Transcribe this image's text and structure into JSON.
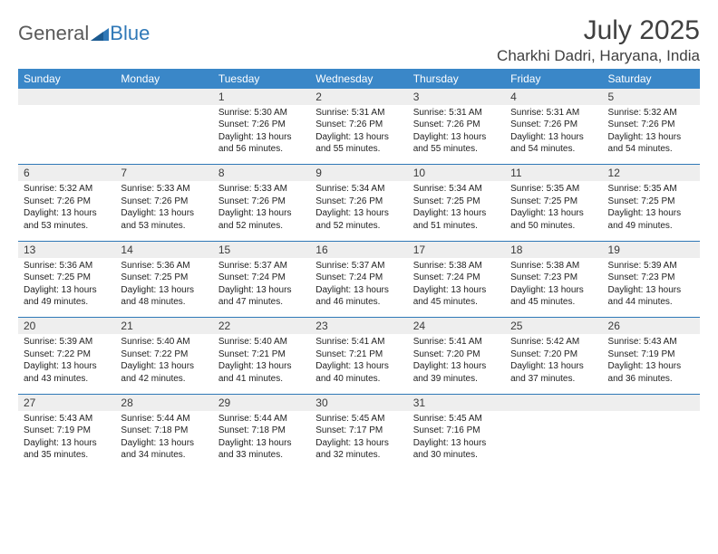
{
  "logo": {
    "part1": "General",
    "part2": "Blue"
  },
  "title": "July 2025",
  "location": "Charkhi Dadri, Haryana, India",
  "colors": {
    "header_bg": "#3a87c8",
    "daynum_bg": "#eeeeee",
    "rule": "#2f78b7",
    "text": "#222222",
    "title_text": "#404040"
  },
  "day_headers": [
    "Sunday",
    "Monday",
    "Tuesday",
    "Wednesday",
    "Thursday",
    "Friday",
    "Saturday"
  ],
  "weeks": [
    [
      null,
      null,
      {
        "n": "1",
        "sr": "5:30 AM",
        "ss": "7:26 PM",
        "dl": "13 hours and 56 minutes."
      },
      {
        "n": "2",
        "sr": "5:31 AM",
        "ss": "7:26 PM",
        "dl": "13 hours and 55 minutes."
      },
      {
        "n": "3",
        "sr": "5:31 AM",
        "ss": "7:26 PM",
        "dl": "13 hours and 55 minutes."
      },
      {
        "n": "4",
        "sr": "5:31 AM",
        "ss": "7:26 PM",
        "dl": "13 hours and 54 minutes."
      },
      {
        "n": "5",
        "sr": "5:32 AM",
        "ss": "7:26 PM",
        "dl": "13 hours and 54 minutes."
      }
    ],
    [
      {
        "n": "6",
        "sr": "5:32 AM",
        "ss": "7:26 PM",
        "dl": "13 hours and 53 minutes."
      },
      {
        "n": "7",
        "sr": "5:33 AM",
        "ss": "7:26 PM",
        "dl": "13 hours and 53 minutes."
      },
      {
        "n": "8",
        "sr": "5:33 AM",
        "ss": "7:26 PM",
        "dl": "13 hours and 52 minutes."
      },
      {
        "n": "9",
        "sr": "5:34 AM",
        "ss": "7:26 PM",
        "dl": "13 hours and 52 minutes."
      },
      {
        "n": "10",
        "sr": "5:34 AM",
        "ss": "7:25 PM",
        "dl": "13 hours and 51 minutes."
      },
      {
        "n": "11",
        "sr": "5:35 AM",
        "ss": "7:25 PM",
        "dl": "13 hours and 50 minutes."
      },
      {
        "n": "12",
        "sr": "5:35 AM",
        "ss": "7:25 PM",
        "dl": "13 hours and 49 minutes."
      }
    ],
    [
      {
        "n": "13",
        "sr": "5:36 AM",
        "ss": "7:25 PM",
        "dl": "13 hours and 49 minutes."
      },
      {
        "n": "14",
        "sr": "5:36 AM",
        "ss": "7:25 PM",
        "dl": "13 hours and 48 minutes."
      },
      {
        "n": "15",
        "sr": "5:37 AM",
        "ss": "7:24 PM",
        "dl": "13 hours and 47 minutes."
      },
      {
        "n": "16",
        "sr": "5:37 AM",
        "ss": "7:24 PM",
        "dl": "13 hours and 46 minutes."
      },
      {
        "n": "17",
        "sr": "5:38 AM",
        "ss": "7:24 PM",
        "dl": "13 hours and 45 minutes."
      },
      {
        "n": "18",
        "sr": "5:38 AM",
        "ss": "7:23 PM",
        "dl": "13 hours and 45 minutes."
      },
      {
        "n": "19",
        "sr": "5:39 AM",
        "ss": "7:23 PM",
        "dl": "13 hours and 44 minutes."
      }
    ],
    [
      {
        "n": "20",
        "sr": "5:39 AM",
        "ss": "7:22 PM",
        "dl": "13 hours and 43 minutes."
      },
      {
        "n": "21",
        "sr": "5:40 AM",
        "ss": "7:22 PM",
        "dl": "13 hours and 42 minutes."
      },
      {
        "n": "22",
        "sr": "5:40 AM",
        "ss": "7:21 PM",
        "dl": "13 hours and 41 minutes."
      },
      {
        "n": "23",
        "sr": "5:41 AM",
        "ss": "7:21 PM",
        "dl": "13 hours and 40 minutes."
      },
      {
        "n": "24",
        "sr": "5:41 AM",
        "ss": "7:20 PM",
        "dl": "13 hours and 39 minutes."
      },
      {
        "n": "25",
        "sr": "5:42 AM",
        "ss": "7:20 PM",
        "dl": "13 hours and 37 minutes."
      },
      {
        "n": "26",
        "sr": "5:43 AM",
        "ss": "7:19 PM",
        "dl": "13 hours and 36 minutes."
      }
    ],
    [
      {
        "n": "27",
        "sr": "5:43 AM",
        "ss": "7:19 PM",
        "dl": "13 hours and 35 minutes."
      },
      {
        "n": "28",
        "sr": "5:44 AM",
        "ss": "7:18 PM",
        "dl": "13 hours and 34 minutes."
      },
      {
        "n": "29",
        "sr": "5:44 AM",
        "ss": "7:18 PM",
        "dl": "13 hours and 33 minutes."
      },
      {
        "n": "30",
        "sr": "5:45 AM",
        "ss": "7:17 PM",
        "dl": "13 hours and 32 minutes."
      },
      {
        "n": "31",
        "sr": "5:45 AM",
        "ss": "7:16 PM",
        "dl": "13 hours and 30 minutes."
      },
      null,
      null
    ]
  ],
  "labels": {
    "sunrise": "Sunrise: ",
    "sunset": "Sunset: ",
    "daylight": "Daylight: "
  }
}
